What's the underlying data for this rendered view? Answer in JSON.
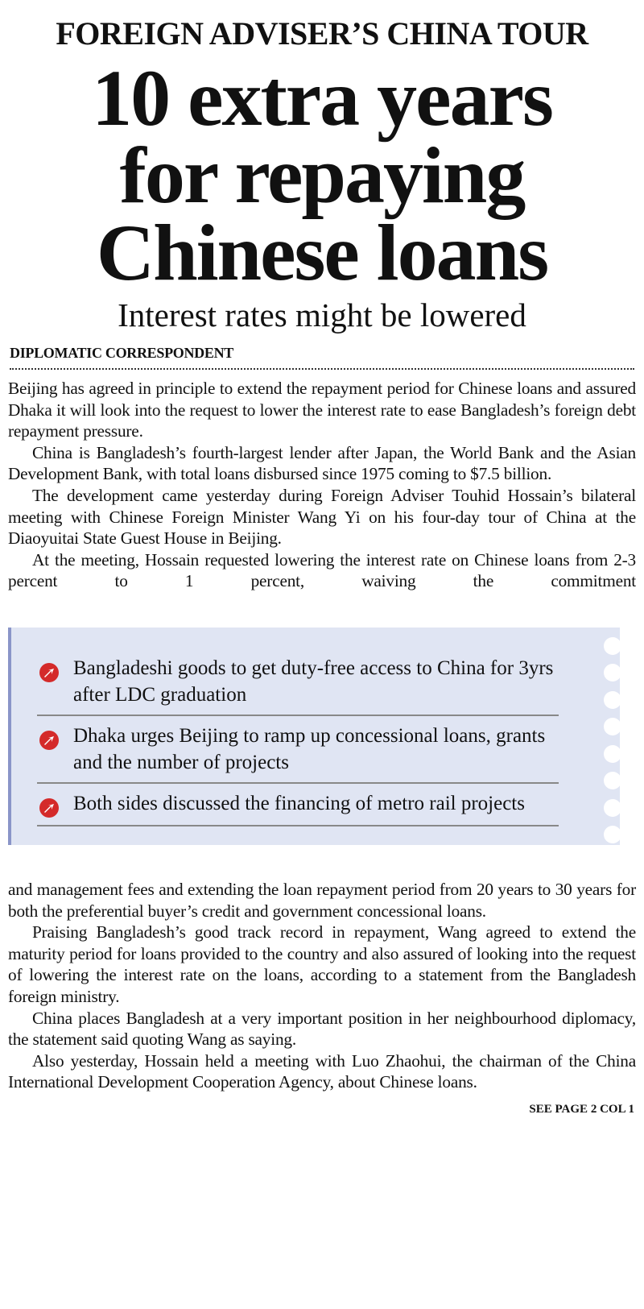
{
  "kicker": "FOREIGN ADVISER’S CHINA TOUR",
  "headline": [
    "10 extra years",
    "for repaying",
    "Chinese loans"
  ],
  "subhead": "Interest rates might be lowered",
  "byline": "DIPLOMATIC CORRESPONDENT",
  "body_top": [
    "Beijing has agreed in principle to extend the repayment period for Chinese loans and assured Dhaka it will look into the request to lower the interest rate to ease Bangladesh’s foreign debt repayment pressure.",
    "China is Bangladesh’s fourth-largest lender after Japan, the World Bank and the Asian Development Bank, with total loans disbursed since 1975 coming to $7.5 billion.",
    "The development came yesterday during Foreign Adviser Touhid Hossain’s bilateral meeting with Chinese Foreign Minister Wang Yi on his four-day tour of China at the Diaoyuitai State Guest House in Beijing.",
    "At the meeting, Hossain requested lowering the interest rate on Chinese loans from 2-3 percent to 1 percent, waiving the commitment"
  ],
  "highlights": [
    "Bangladeshi goods to get duty-free access to China for 3yrs after LDC graduation",
    "Dhaka urges Beijing to ramp up concessional loans, grants and the number of projects",
    "Both sides discussed the financing of metro rail projects"
  ],
  "body_bottom": [
    "and management fees and extending the loan repayment period from 20 years to 30 years for both the preferential buyer’s credit and government concessional loans.",
    "Praising Bangladesh’s good track record in repayment, Wang agreed to extend the maturity period for loans provided to the country and also assured of looking into the request of lowering the interest rate on the loans, according to a statement from the Bangladesh foreign ministry.",
    "China places Bangladesh at a very important position in her neighbourhood diplomacy, the statement said quoting Wang as saying.",
    "Also yesterday, Hossain held a meeting with Luo Zhaohui, the chairman of the China International Development Cooperation Agency, about Chinese loans."
  ],
  "continuation": "SEE PAGE 2 COL 1",
  "colors": {
    "box_bg": "#e0e5f3",
    "box_border": "#8a95c8",
    "bullet": "#d42a2a"
  }
}
